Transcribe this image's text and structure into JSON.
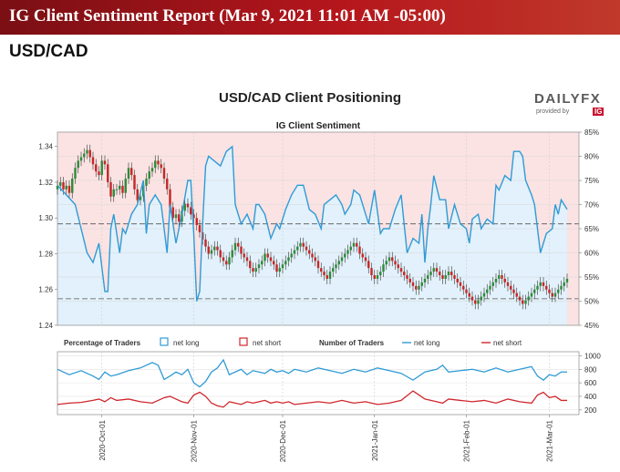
{
  "header": {
    "title": "IG Client Sentiment Report (Mar 9, 2021 11:01 AM -05:00)",
    "pair": "USD/CAD"
  },
  "logo": {
    "text_a": "DAILY",
    "text_b": "FX",
    "provided": "provided by",
    "brand": "IG"
  },
  "colors": {
    "long": "#2f9bd6",
    "short": "#d0262c",
    "candle_up": "#2e8b3a",
    "candle_down": "#c62828",
    "banner": "#b5161c",
    "long_fill": "#e2f1fb",
    "short_fill": "#fbe3e3"
  },
  "chart_data": [
    {
      "type": "line",
      "title": "USD/CAD Client Positioning",
      "subtitle": "IG Client Sentiment",
      "y_left": {
        "ticks": [
          "1.24",
          "1.26",
          "1.28",
          "1.30",
          "1.32",
          "1.34"
        ],
        "range": [
          1.24,
          1.348
        ]
      },
      "y_right": {
        "ticks": [
          "45%",
          "50%",
          "55%",
          "60%",
          "65%",
          "70%",
          "75%",
          "80%",
          "85%"
        ],
        "range": [
          45,
          85
        ]
      },
      "x_ticks": [
        "2020-Oct-01",
        "2020-Nov-01",
        "2020-Dec-01",
        "2021-Jan-01",
        "2021-Feb-01",
        "2021-Mar-01"
      ],
      "x_tick_days": [
        15,
        46,
        76,
        107,
        138,
        166
      ],
      "x_range_days": [
        0,
        176
      ],
      "reference_lines": [
        {
          "name": "upper",
          "value": 66
        },
        {
          "name": "lower",
          "value": 50.5
        }
      ],
      "series": [
        {
          "name": "net long %",
          "days": [
            0,
            3,
            6,
            8,
            10,
            12,
            14,
            16,
            17,
            18,
            19,
            20,
            21,
            22,
            23,
            25,
            27,
            29,
            30,
            31,
            33,
            35,
            37,
            38,
            40,
            42,
            44,
            45,
            46,
            47,
            48,
            49,
            50,
            51,
            53,
            55,
            57,
            59,
            60,
            62,
            64,
            66,
            67,
            68,
            70,
            72,
            74,
            75,
            77,
            79,
            81,
            83,
            85,
            87,
            89,
            90,
            92,
            94,
            96,
            97,
            99,
            100,
            102,
            104,
            105,
            107,
            109,
            110,
            112,
            114,
            116,
            118,
            120,
            122,
            123,
            124,
            125,
            126,
            127,
            129,
            131,
            132,
            134,
            136,
            138,
            139,
            140,
            142,
            143,
            145,
            147,
            148,
            149,
            151,
            153,
            154,
            156,
            157,
            158,
            160,
            161,
            162,
            163,
            165,
            167,
            168,
            169,
            170,
            172
          ],
          "values": [
            74,
            72,
            70,
            65,
            60,
            58,
            62,
            52,
            52,
            65,
            68,
            64,
            60,
            65,
            64,
            68,
            70,
            75,
            64,
            70,
            72,
            70,
            60,
            70,
            62,
            68,
            75,
            75,
            64,
            50,
            52,
            66,
            78,
            80,
            79,
            78,
            81,
            82,
            70,
            66,
            68,
            65,
            70,
            70,
            68,
            63,
            66,
            65,
            69,
            72,
            74,
            74,
            69,
            68,
            65,
            70,
            71,
            72,
            70,
            68,
            70,
            73,
            72,
            68,
            66,
            73,
            64,
            65,
            65,
            69,
            72,
            60,
            63,
            62,
            68,
            58,
            65,
            70,
            76,
            71,
            71,
            65,
            70,
            66,
            65,
            62,
            67,
            68,
            65,
            67,
            66,
            74,
            73,
            76,
            75,
            81,
            81,
            80,
            75,
            72,
            70,
            65,
            60,
            64,
            65,
            70,
            68,
            71,
            69
          ]
        }
      ],
      "candles": {
        "days": [
          0,
          1,
          2,
          3,
          4,
          5,
          6,
          7,
          8,
          9,
          10,
          11,
          12,
          13,
          14,
          15,
          16,
          17,
          18,
          19,
          20,
          21,
          22,
          23,
          24,
          25,
          26,
          27,
          28,
          29,
          30,
          31,
          32,
          33,
          34,
          35,
          36,
          37,
          38,
          39,
          40,
          41,
          42,
          43,
          44,
          45,
          46,
          47,
          48,
          49,
          50,
          51,
          52,
          53,
          54,
          55,
          56,
          57,
          58,
          59,
          60,
          61,
          62,
          63,
          64,
          65,
          66,
          67,
          68,
          69,
          70,
          71,
          72,
          73,
          74,
          75,
          76,
          77,
          78,
          79,
          80,
          81,
          82,
          83,
          84,
          85,
          86,
          87,
          88,
          89,
          90,
          91,
          92,
          93,
          94,
          95,
          96,
          97,
          98,
          99,
          100,
          101,
          102,
          103,
          104,
          105,
          106,
          107,
          108,
          109,
          110,
          111,
          112,
          113,
          114,
          115,
          116,
          117,
          118,
          119,
          120,
          121,
          122,
          123,
          124,
          125,
          126,
          127,
          128,
          129,
          130,
          131,
          132,
          133,
          134,
          135,
          136,
          137,
          138,
          139,
          140,
          141,
          142,
          143,
          144,
          145,
          146,
          147,
          148,
          149,
          150,
          151,
          152,
          153,
          154,
          155,
          156,
          157,
          158,
          159,
          160,
          161,
          162,
          163,
          164,
          165,
          166,
          167,
          168,
          169,
          170,
          171,
          172
        ],
        "close": [
          1.318,
          1.32,
          1.316,
          1.318,
          1.314,
          1.322,
          1.328,
          1.332,
          1.334,
          1.336,
          1.338,
          1.334,
          1.33,
          1.326,
          1.324,
          1.332,
          1.33,
          1.32,
          1.312,
          1.316,
          1.316,
          1.318,
          1.314,
          1.322,
          1.328,
          1.324,
          1.316,
          1.31,
          1.312,
          1.318,
          1.322,
          1.326,
          1.328,
          1.332,
          1.33,
          1.328,
          1.322,
          1.316,
          1.306,
          1.3,
          1.302,
          1.298,
          1.304,
          1.308,
          1.306,
          1.302,
          1.3,
          1.296,
          1.292,
          1.288,
          1.284,
          1.28,
          1.282,
          1.284,
          1.282,
          1.278,
          1.276,
          1.274,
          1.278,
          1.282,
          1.286,
          1.284,
          1.28,
          1.278,
          1.276,
          1.272,
          1.27,
          1.272,
          1.274,
          1.276,
          1.28,
          1.278,
          1.276,
          1.274,
          1.27,
          1.272,
          1.274,
          1.276,
          1.278,
          1.28,
          1.282,
          1.284,
          1.286,
          1.284,
          1.282,
          1.28,
          1.278,
          1.276,
          1.272,
          1.27,
          1.268,
          1.266,
          1.27,
          1.272,
          1.274,
          1.276,
          1.278,
          1.28,
          1.282,
          1.284,
          1.286,
          1.284,
          1.28,
          1.278,
          1.276,
          1.272,
          1.268,
          1.266,
          1.268,
          1.27,
          1.274,
          1.276,
          1.278,
          1.276,
          1.274,
          1.272,
          1.27,
          1.268,
          1.266,
          1.264,
          1.262,
          1.26,
          1.262,
          1.264,
          1.266,
          1.268,
          1.27,
          1.272,
          1.27,
          1.268,
          1.266,
          1.268,
          1.27,
          1.268,
          1.266,
          1.264,
          1.262,
          1.26,
          1.258,
          1.256,
          1.254,
          1.252,
          1.254,
          1.256,
          1.258,
          1.26,
          1.262,
          1.264,
          1.266,
          1.268,
          1.266,
          1.264,
          1.262,
          1.26,
          1.258,
          1.256,
          1.254,
          1.252,
          1.254,
          1.256,
          1.258,
          1.26,
          1.262,
          1.264,
          1.262,
          1.26,
          1.258,
          1.256,
          1.258,
          1.26,
          1.262,
          1.264,
          1.266
        ],
        "open": [
          1.316,
          1.318,
          1.32,
          1.316,
          1.318,
          1.314,
          1.322,
          1.328,
          1.332,
          1.334,
          1.336,
          1.338,
          1.334,
          1.33,
          1.326,
          1.324,
          1.332,
          1.33,
          1.32,
          1.312,
          1.316,
          1.316,
          1.318,
          1.314,
          1.322,
          1.328,
          1.324,
          1.316,
          1.31,
          1.312,
          1.318,
          1.322,
          1.326,
          1.328,
          1.332,
          1.33,
          1.328,
          1.322,
          1.316,
          1.306,
          1.3,
          1.302,
          1.298,
          1.304,
          1.308,
          1.306,
          1.302,
          1.3,
          1.296,
          1.292,
          1.288,
          1.284,
          1.28,
          1.282,
          1.284,
          1.282,
          1.278,
          1.276,
          1.274,
          1.278,
          1.282,
          1.286,
          1.284,
          1.28,
          1.278,
          1.276,
          1.272,
          1.27,
          1.272,
          1.274,
          1.276,
          1.28,
          1.278,
          1.276,
          1.274,
          1.27,
          1.272,
          1.274,
          1.276,
          1.278,
          1.28,
          1.282,
          1.284,
          1.286,
          1.284,
          1.282,
          1.28,
          1.278,
          1.276,
          1.272,
          1.27,
          1.268,
          1.266,
          1.27,
          1.272,
          1.274,
          1.276,
          1.278,
          1.28,
          1.282,
          1.284,
          1.286,
          1.284,
          1.28,
          1.278,
          1.276,
          1.272,
          1.268,
          1.266,
          1.268,
          1.27,
          1.274,
          1.276,
          1.278,
          1.276,
          1.274,
          1.272,
          1.27,
          1.268,
          1.266,
          1.264,
          1.262,
          1.26,
          1.262,
          1.264,
          1.266,
          1.268,
          1.27,
          1.272,
          1.27,
          1.268,
          1.266,
          1.268,
          1.27,
          1.268,
          1.266,
          1.264,
          1.262,
          1.26,
          1.258,
          1.256,
          1.254,
          1.252,
          1.254,
          1.256,
          1.258,
          1.26,
          1.262,
          1.264,
          1.266,
          1.268,
          1.266,
          1.264,
          1.262,
          1.26,
          1.258,
          1.256,
          1.254,
          1.252,
          1.254,
          1.256,
          1.258,
          1.26,
          1.262,
          1.264,
          1.262,
          1.26,
          1.258,
          1.256,
          1.258,
          1.26,
          1.262,
          1.264
        ]
      }
    },
    {
      "type": "line",
      "legend_left": {
        "title": "Percentage of Traders",
        "long": "net long",
        "short": "net short"
      },
      "legend_right": {
        "title": "Number of Traders",
        "long": "net long",
        "short": "net short"
      },
      "y_right": {
        "ticks": [
          "200",
          "400",
          "600",
          "800",
          "1000"
        ],
        "range": [
          130,
          1060
        ]
      },
      "series": [
        {
          "name": "net long",
          "days": [
            0,
            4,
            8,
            12,
            14,
            16,
            18,
            20,
            24,
            28,
            32,
            34,
            36,
            38,
            40,
            42,
            44,
            46,
            48,
            50,
            52,
            54,
            56,
            58,
            60,
            62,
            64,
            66,
            68,
            70,
            72,
            74,
            76,
            78,
            80,
            84,
            88,
            92,
            96,
            100,
            104,
            108,
            112,
            116,
            120,
            124,
            128,
            130,
            132,
            136,
            140,
            144,
            148,
            152,
            156,
            160,
            162,
            164,
            166,
            168,
            170,
            172
          ],
          "values": [
            800,
            720,
            780,
            700,
            650,
            760,
            700,
            720,
            780,
            820,
            900,
            860,
            650,
            700,
            760,
            720,
            800,
            600,
            540,
            620,
            760,
            820,
            940,
            720,
            760,
            800,
            720,
            780,
            760,
            740,
            800,
            760,
            780,
            740,
            800,
            760,
            820,
            780,
            740,
            800,
            760,
            820,
            780,
            740,
            640,
            760,
            800,
            860,
            760,
            780,
            800,
            760,
            820,
            760,
            800,
            840,
            700,
            640,
            720,
            700,
            760,
            760
          ]
        },
        {
          "name": "net short",
          "days": [
            0,
            4,
            8,
            12,
            14,
            16,
            18,
            20,
            24,
            28,
            32,
            34,
            36,
            38,
            40,
            42,
            44,
            46,
            48,
            50,
            52,
            54,
            56,
            58,
            60,
            62,
            64,
            66,
            68,
            70,
            72,
            74,
            76,
            78,
            80,
            84,
            88,
            92,
            96,
            100,
            104,
            108,
            112,
            116,
            120,
            124,
            128,
            130,
            132,
            136,
            140,
            144,
            148,
            152,
            156,
            160,
            162,
            164,
            166,
            168,
            170,
            172
          ],
          "values": [
            280,
            300,
            310,
            340,
            360,
            320,
            380,
            340,
            360,
            320,
            300,
            340,
            380,
            400,
            360,
            320,
            300,
            420,
            460,
            400,
            300,
            260,
            240,
            320,
            300,
            280,
            320,
            300,
            320,
            340,
            300,
            320,
            300,
            320,
            280,
            300,
            320,
            300,
            340,
            300,
            320,
            280,
            300,
            340,
            480,
            360,
            320,
            300,
            360,
            340,
            320,
            340,
            300,
            360,
            320,
            300,
            420,
            460,
            380,
            400,
            340,
            340
          ]
        }
      ]
    }
  ]
}
